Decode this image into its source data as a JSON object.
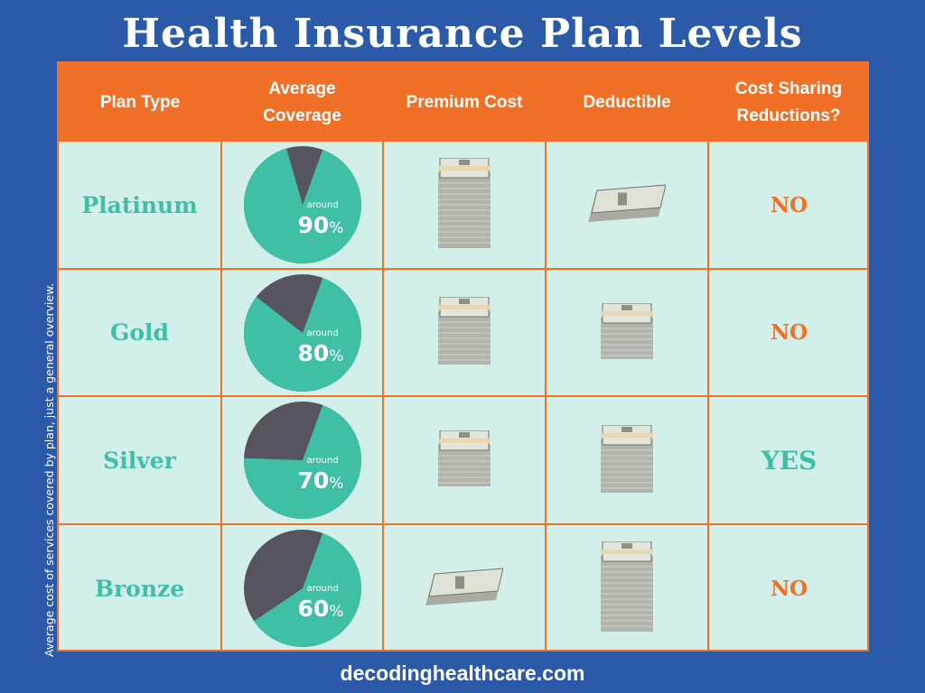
{
  "title": "Health Insurance Plan Levels",
  "side_note": "Average cost of services covered by plan, just a general overview.",
  "footer": "decodinghealthcare.com",
  "colors": {
    "background": "#2a5aa8",
    "header": "#f07028",
    "cell": "#d3efe9",
    "teal": "#3fbfa5",
    "dark": "#56555f",
    "orange_text": "#f07028"
  },
  "headers": [
    "Plan Type",
    "Average Coverage",
    "Premium Cost",
    "Deductible",
    "Cost Sharing Reductions?"
  ],
  "rows": [
    {
      "plan": "Platinum",
      "around": "around",
      "coverage": "90",
      "pct_sign": "%",
      "premium_stack": "tall",
      "deductible_stack": "small",
      "csr": "NO",
      "csr_color": "#f07028"
    },
    {
      "plan": "Gold",
      "around": "around",
      "coverage": "80",
      "pct_sign": "%",
      "premium_stack": "medium-large",
      "deductible_stack": "medium",
      "csr": "NO",
      "csr_color": "#f07028"
    },
    {
      "plan": "Silver",
      "around": "around",
      "coverage": "70",
      "pct_sign": "%",
      "premium_stack": "medium",
      "deductible_stack": "medium-large",
      "csr": "YES",
      "csr_color": "#3fbfa5"
    },
    {
      "plan": "Bronze",
      "around": "around",
      "coverage": "60",
      "pct_sign": "%",
      "premium_stack": "small",
      "deductible_stack": "tall",
      "csr": "NO",
      "csr_color": "#f07028"
    }
  ],
  "chart_data": {
    "type": "table",
    "title": "Health Insurance Plan Levels",
    "columns": [
      "Plan Type",
      "Average Coverage",
      "Premium Cost",
      "Deductible",
      "Cost Sharing Reductions?"
    ],
    "rows": [
      [
        "Platinum",
        90,
        "highest",
        "lowest",
        "NO"
      ],
      [
        "Gold",
        80,
        "high",
        "low",
        "NO"
      ],
      [
        "Silver",
        70,
        "medium",
        "medium",
        "YES"
      ],
      [
        "Bronze",
        60,
        "lowest",
        "highest",
        "NO"
      ]
    ],
    "pie_charts": [
      {
        "label": "Platinum",
        "values": [
          90,
          10
        ]
      },
      {
        "label": "Gold",
        "values": [
          80,
          20
        ]
      },
      {
        "label": "Silver",
        "values": [
          70,
          30
        ]
      },
      {
        "label": "Bronze",
        "values": [
          60,
          40
        ]
      }
    ]
  }
}
